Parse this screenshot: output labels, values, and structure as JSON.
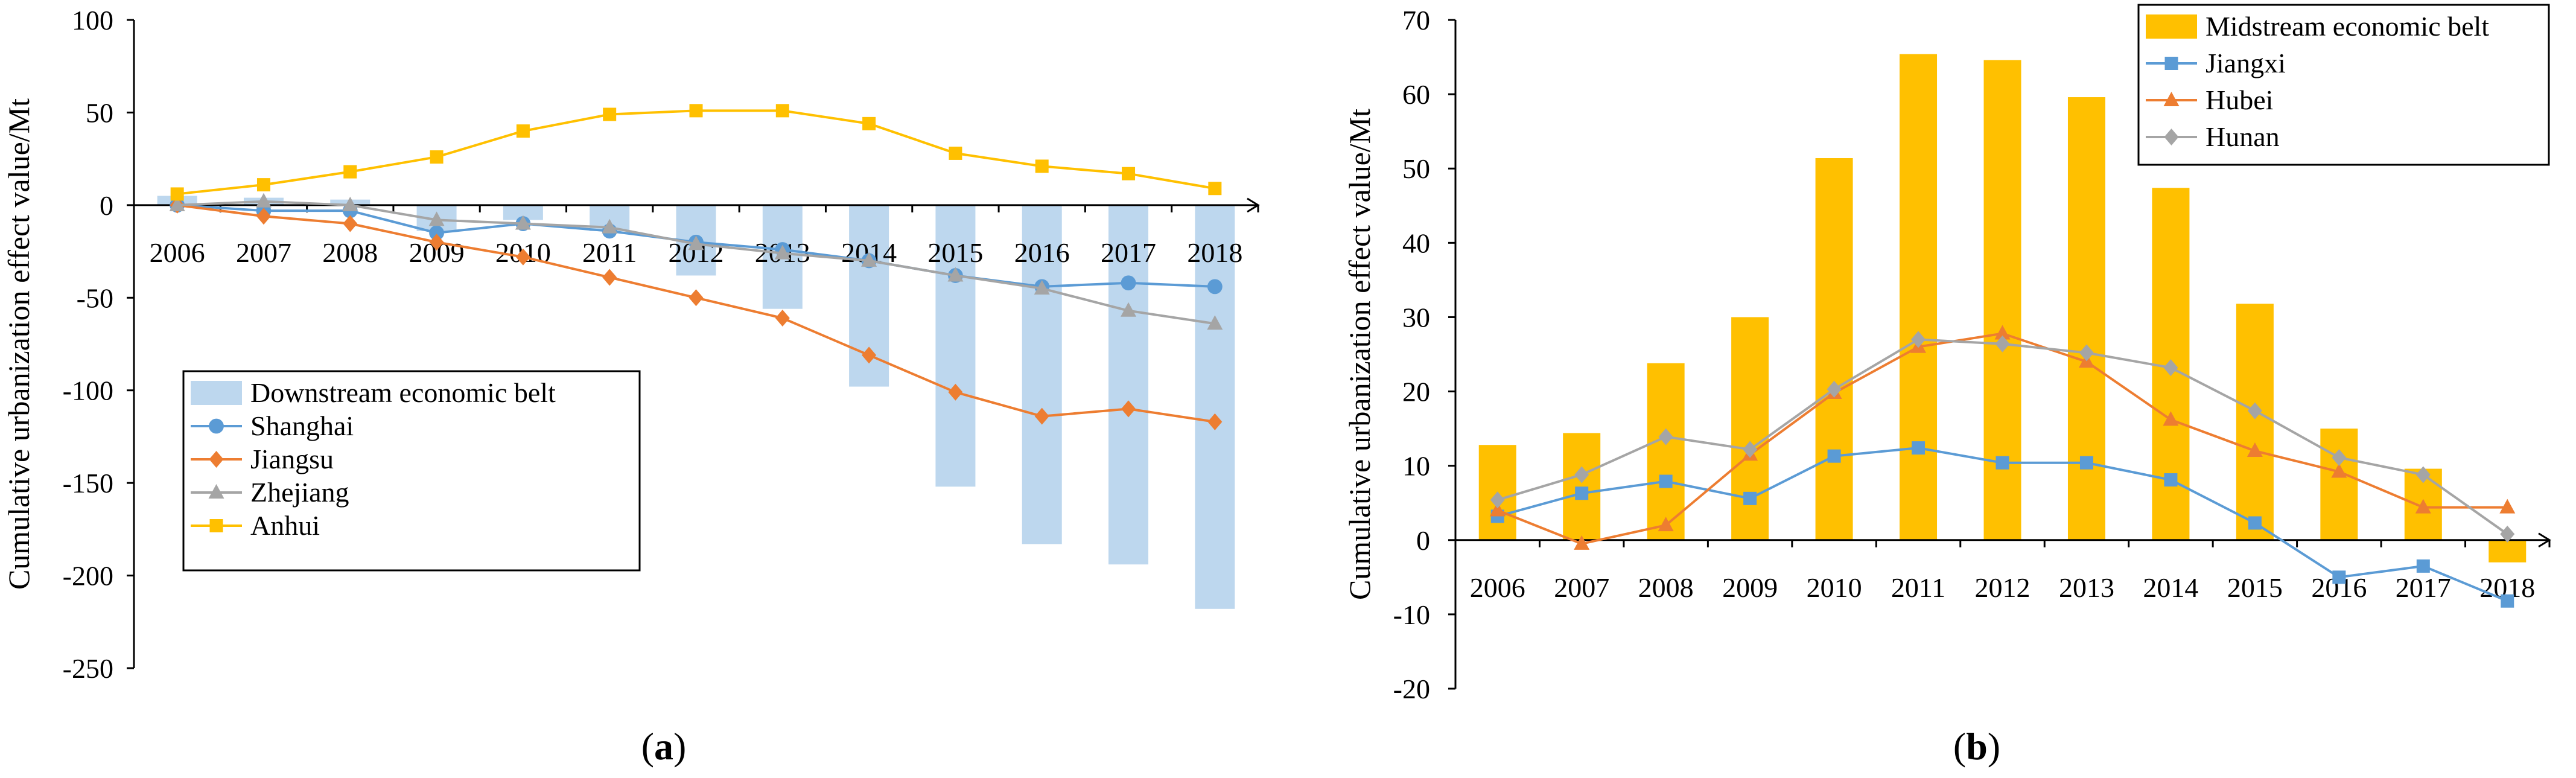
{
  "chart_data": [
    {
      "panel_label": "a",
      "type": "bar",
      "categories": [
        "2006",
        "2007",
        "2008",
        "2009",
        "2010",
        "2011",
        "2012",
        "2013",
        "2014",
        "2015",
        "2016",
        "2017",
        "2018"
      ],
      "ylabel": "Cumulative urbanization effect value/Mt",
      "ylim": [
        -250,
        100
      ],
      "yticks": [
        "100",
        "50",
        "0",
        "-50",
        "-100",
        "-150",
        "-200",
        "-250"
      ],
      "legend_position": "lower-left",
      "bar_series": {
        "name": "Downstream economic belt",
        "color": "#bdd7ee",
        "values": [
          5,
          4,
          3,
          -14,
          -8,
          -14,
          -38,
          -56,
          -98,
          -152,
          -183,
          -194,
          -218
        ]
      },
      "line_series": [
        {
          "name": "Shanghai",
          "color": "#5b9bd5",
          "marker": "circle",
          "values": [
            0,
            -3,
            -3,
            -15,
            -10,
            -14,
            -20,
            -24,
            -30,
            -38,
            -44,
            -42,
            -44
          ]
        },
        {
          "name": "Jiangsu",
          "color": "#ed7d31",
          "marker": "diamond",
          "values": [
            0,
            -6,
            -10,
            -20,
            -28,
            -39,
            -50,
            -61,
            -81,
            -101,
            -114,
            -110,
            -117
          ]
        },
        {
          "name": "Zhejiang",
          "color": "#a5a5a5",
          "marker": "triangle",
          "values": [
            0,
            2,
            0,
            -8,
            -10,
            -12,
            -21,
            -26,
            -30,
            -38,
            -45,
            -57,
            -64
          ]
        },
        {
          "name": "Anhui",
          "color": "#ffc000",
          "marker": "square",
          "values": [
            6,
            11,
            18,
            26,
            40,
            49,
            51,
            51,
            44,
            28,
            21,
            17,
            9
          ]
        }
      ]
    },
    {
      "panel_label": "b",
      "type": "bar",
      "categories": [
        "2006",
        "2007",
        "2008",
        "2009",
        "2010",
        "2011",
        "2012",
        "2013",
        "2014",
        "2015",
        "2016",
        "2017",
        "2018"
      ],
      "ylabel": "Cumulative urbanization effect value/Mt",
      "ylim": [
        -20,
        70
      ],
      "yticks": [
        "70",
        "60",
        "50",
        "40",
        "30",
        "20",
        "10",
        "0",
        "-10",
        "-20"
      ],
      "legend_position": "top-right",
      "bar_series": {
        "name": "Midstream economic belt",
        "color": "#ffc000",
        "values": [
          12.8,
          14.4,
          23.8,
          30,
          51.4,
          65.4,
          64.6,
          59.6,
          47.4,
          31.8,
          15,
          9.6,
          -3
        ]
      },
      "line_series": [
        {
          "name": "Jiangxi",
          "color": "#5b9bd5",
          "marker": "square",
          "values": [
            3.2,
            6.3,
            7.9,
            5.6,
            11.3,
            12.4,
            10.4,
            10.4,
            8.1,
            2.3,
            -5,
            -3.5,
            -8.2
          ]
        },
        {
          "name": "Hubei",
          "color": "#ed7d31",
          "marker": "triangle",
          "values": [
            4,
            -0.5,
            2,
            11.5,
            19.8,
            26,
            27.8,
            24,
            16.2,
            12,
            9.2,
            4.4,
            4.4
          ]
        },
        {
          "name": "Hunan",
          "color": "#a5a5a5",
          "marker": "diamond",
          "values": [
            5.4,
            8.8,
            13.9,
            12.2,
            20.3,
            27,
            26.4,
            25.2,
            23.2,
            17.4,
            11.1,
            8.8,
            0.8
          ]
        }
      ]
    }
  ]
}
